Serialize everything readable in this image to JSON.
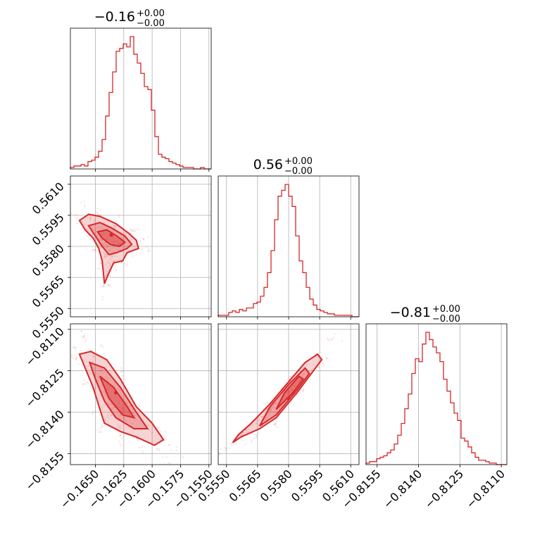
{
  "chart_data": {
    "type": "corner",
    "color": "#d62728",
    "grid": true,
    "parameters": [
      {
        "title_value": "−0.16",
        "title_upper": "+0.00",
        "title_lower": "−0.00",
        "range": [
          -0.1672,
          -0.1548
        ],
        "ticks": [
          -0.165,
          -0.1625,
          -0.16,
          -0.1575,
          -0.155
        ],
        "tick_labels": [
          "−0.1650",
          "−0.1625",
          "−0.1600",
          "−0.1575",
          "−0.1550"
        ]
      },
      {
        "title_value": "0.56",
        "title_upper": "+0.00",
        "title_lower": "−0.00",
        "range": [
          0.5546,
          0.5614
        ],
        "ticks": [
          0.555,
          0.5565,
          0.558,
          0.5595,
          0.561
        ],
        "tick_labels": [
          "0.5550",
          "0.5565",
          "0.5580",
          "0.5595",
          "0.5610"
        ]
      },
      {
        "title_value": "−0.81",
        "title_upper": "+0.00",
        "title_lower": "−0.00",
        "range": [
          -0.8159,
          -0.8108
        ],
        "ticks": [
          -0.8155,
          -0.814,
          -0.8125,
          -0.811
        ],
        "tick_labels": [
          "−0.8155",
          "−0.8140",
          "−0.8125",
          "−0.8110"
        ]
      }
    ],
    "histograms": [
      {
        "param": 0,
        "bin_edges_start": -0.1672,
        "bin_width": 0.00031,
        "counts": [
          1,
          2,
          2,
          3,
          2,
          5,
          6,
          8,
          12,
          20,
          36,
          52,
          66,
          80,
          82,
          85,
          83,
          90,
          78,
          72,
          65,
          56,
          54,
          40,
          22,
          10,
          8,
          7,
          5,
          4,
          3,
          2,
          1,
          1,
          1,
          0,
          0,
          1,
          0,
          0
        ]
      },
      {
        "param": 1,
        "bin_edges_start": 0.5546,
        "bin_width": 0.00017,
        "counts": [
          1,
          1,
          1,
          3,
          4,
          3,
          5,
          4,
          6,
          6,
          9,
          10,
          14,
          20,
          30,
          45,
          66,
          82,
          86,
          90,
          82,
          75,
          55,
          38,
          30,
          20,
          12,
          8,
          5,
          4,
          3,
          2,
          2,
          1,
          1,
          1,
          1,
          1,
          0,
          0
        ]
      },
      {
        "param": 2,
        "bin_edges_start": -0.8159,
        "bin_width": 0.0001275,
        "counts": [
          1,
          2,
          2,
          4,
          5,
          6,
          8,
          10,
          14,
          20,
          28,
          38,
          48,
          62,
          72,
          70,
          82,
          90,
          85,
          80,
          76,
          70,
          58,
          50,
          42,
          35,
          30,
          18,
          16,
          12,
          8,
          5,
          3,
          3,
          2,
          1,
          1,
          0,
          0,
          0
        ]
      }
    ],
    "scatter_panels": [
      {
        "x_param": 0,
        "y_param": 1,
        "center": [
          -0.1632,
          0.5584
        ],
        "peak": [
          -0.1636,
          0.55855
        ],
        "contours": [
          [
            [
              -0.1664,
              0.55925
            ],
            [
              -0.1656,
              0.55955
            ],
            [
              -0.1646,
              0.55945
            ],
            [
              -0.1632,
              0.5591
            ],
            [
              -0.1621,
              0.55865
            ],
            [
              -0.1614,
              0.5583
            ],
            [
              -0.1612,
              0.5579
            ],
            [
              -0.1622,
              0.5577
            ],
            [
              -0.1626,
              0.5573
            ],
            [
              -0.1634,
              0.5572
            ],
            [
              -0.1639,
              0.5566
            ],
            [
              -0.1642,
              0.5562
            ],
            [
              -0.1644,
              0.5573
            ],
            [
              -0.1647,
              0.5579
            ],
            [
              -0.1652,
              0.5584
            ],
            [
              -0.1659,
              0.5588
            ]
          ],
          [
            [
              -0.1656,
              0.559
            ],
            [
              -0.1646,
              0.55915
            ],
            [
              -0.1636,
              0.5589
            ],
            [
              -0.1624,
              0.5585
            ],
            [
              -0.1618,
              0.5581
            ],
            [
              -0.1622,
              0.5579
            ],
            [
              -0.1631,
              0.5577
            ],
            [
              -0.1638,
              0.5576
            ],
            [
              -0.1644,
              0.558
            ],
            [
              -0.165,
              0.5585
            ]
          ],
          [
            [
              -0.1648,
              0.5587
            ],
            [
              -0.164,
              0.5588
            ],
            [
              -0.1631,
              0.5585
            ],
            [
              -0.1624,
              0.5582
            ],
            [
              -0.1629,
              0.558
            ],
            [
              -0.1637,
              0.5581
            ],
            [
              -0.1644,
              0.5584
            ]
          ]
        ]
      },
      {
        "x_param": 0,
        "y_param": 2,
        "center": [
          -0.163,
          -0.8135
        ],
        "peak": [
          -0.1632,
          -0.8133
        ],
        "contours": [
          [
            [
              -0.1664,
              -0.8119
            ],
            [
              -0.1654,
              -0.8118
            ],
            [
              -0.164,
              -0.8121
            ],
            [
              -0.1628,
              -0.8128
            ],
            [
              -0.1614,
              -0.8138
            ],
            [
              -0.16,
              -0.8144
            ],
            [
              -0.159,
              -0.815
            ],
            [
              -0.1598,
              -0.8152
            ],
            [
              -0.1614,
              -0.8149
            ],
            [
              -0.1628,
              -0.8147
            ],
            [
              -0.1642,
              -0.8144
            ],
            [
              -0.1646,
              -0.8139
            ],
            [
              -0.1652,
              -0.8131
            ],
            [
              -0.1659,
              -0.8124
            ]
          ],
          [
            [
              -0.1655,
              -0.8122
            ],
            [
              -0.1642,
              -0.8124
            ],
            [
              -0.1628,
              -0.8131
            ],
            [
              -0.1614,
              -0.814
            ],
            [
              -0.1604,
              -0.8146
            ],
            [
              -0.1616,
              -0.8146
            ],
            [
              -0.1632,
              -0.8142
            ],
            [
              -0.1642,
              -0.8136
            ],
            [
              -0.165,
              -0.8128
            ]
          ],
          [
            [
              -0.1646,
              -0.8127
            ],
            [
              -0.1634,
              -0.8131
            ],
            [
              -0.1622,
              -0.8138
            ],
            [
              -0.1616,
              -0.8142
            ],
            [
              -0.1626,
              -0.8141
            ],
            [
              -0.1638,
              -0.8135
            ]
          ]
        ]
      },
      {
        "x_param": 1,
        "y_param": 2,
        "center": [
          0.558,
          -0.8136
        ],
        "peak": [
          0.558,
          -0.8135
        ],
        "contours": [
          [
            [
              0.5553,
              -0.8151
            ],
            [
              0.5557,
              -0.8149
            ],
            [
              0.5566,
              -0.8146
            ],
            [
              0.5574,
              -0.8142
            ],
            [
              0.5584,
              -0.8133
            ],
            [
              0.5592,
              -0.8125
            ],
            [
              0.5596,
              -0.8121
            ],
            [
              0.5594,
              -0.8119
            ],
            [
              0.5588,
              -0.8122
            ],
            [
              0.558,
              -0.8129
            ],
            [
              0.5571,
              -0.8137
            ],
            [
              0.5562,
              -0.8144
            ],
            [
              0.5556,
              -0.8148
            ]
          ],
          [
            [
              0.5566,
              -0.8145
            ],
            [
              0.5574,
              -0.8141
            ],
            [
              0.5584,
              -0.8132
            ],
            [
              0.559,
              -0.8126
            ],
            [
              0.5588,
              -0.8124
            ],
            [
              0.558,
              -0.813
            ],
            [
              0.5571,
              -0.8138
            ]
          ],
          [
            [
              0.5574,
              -0.8139
            ],
            [
              0.5582,
              -0.8133
            ],
            [
              0.5587,
              -0.8128
            ],
            [
              0.5585,
              -0.8127
            ],
            [
              0.5578,
              -0.8133
            ]
          ]
        ]
      }
    ]
  }
}
